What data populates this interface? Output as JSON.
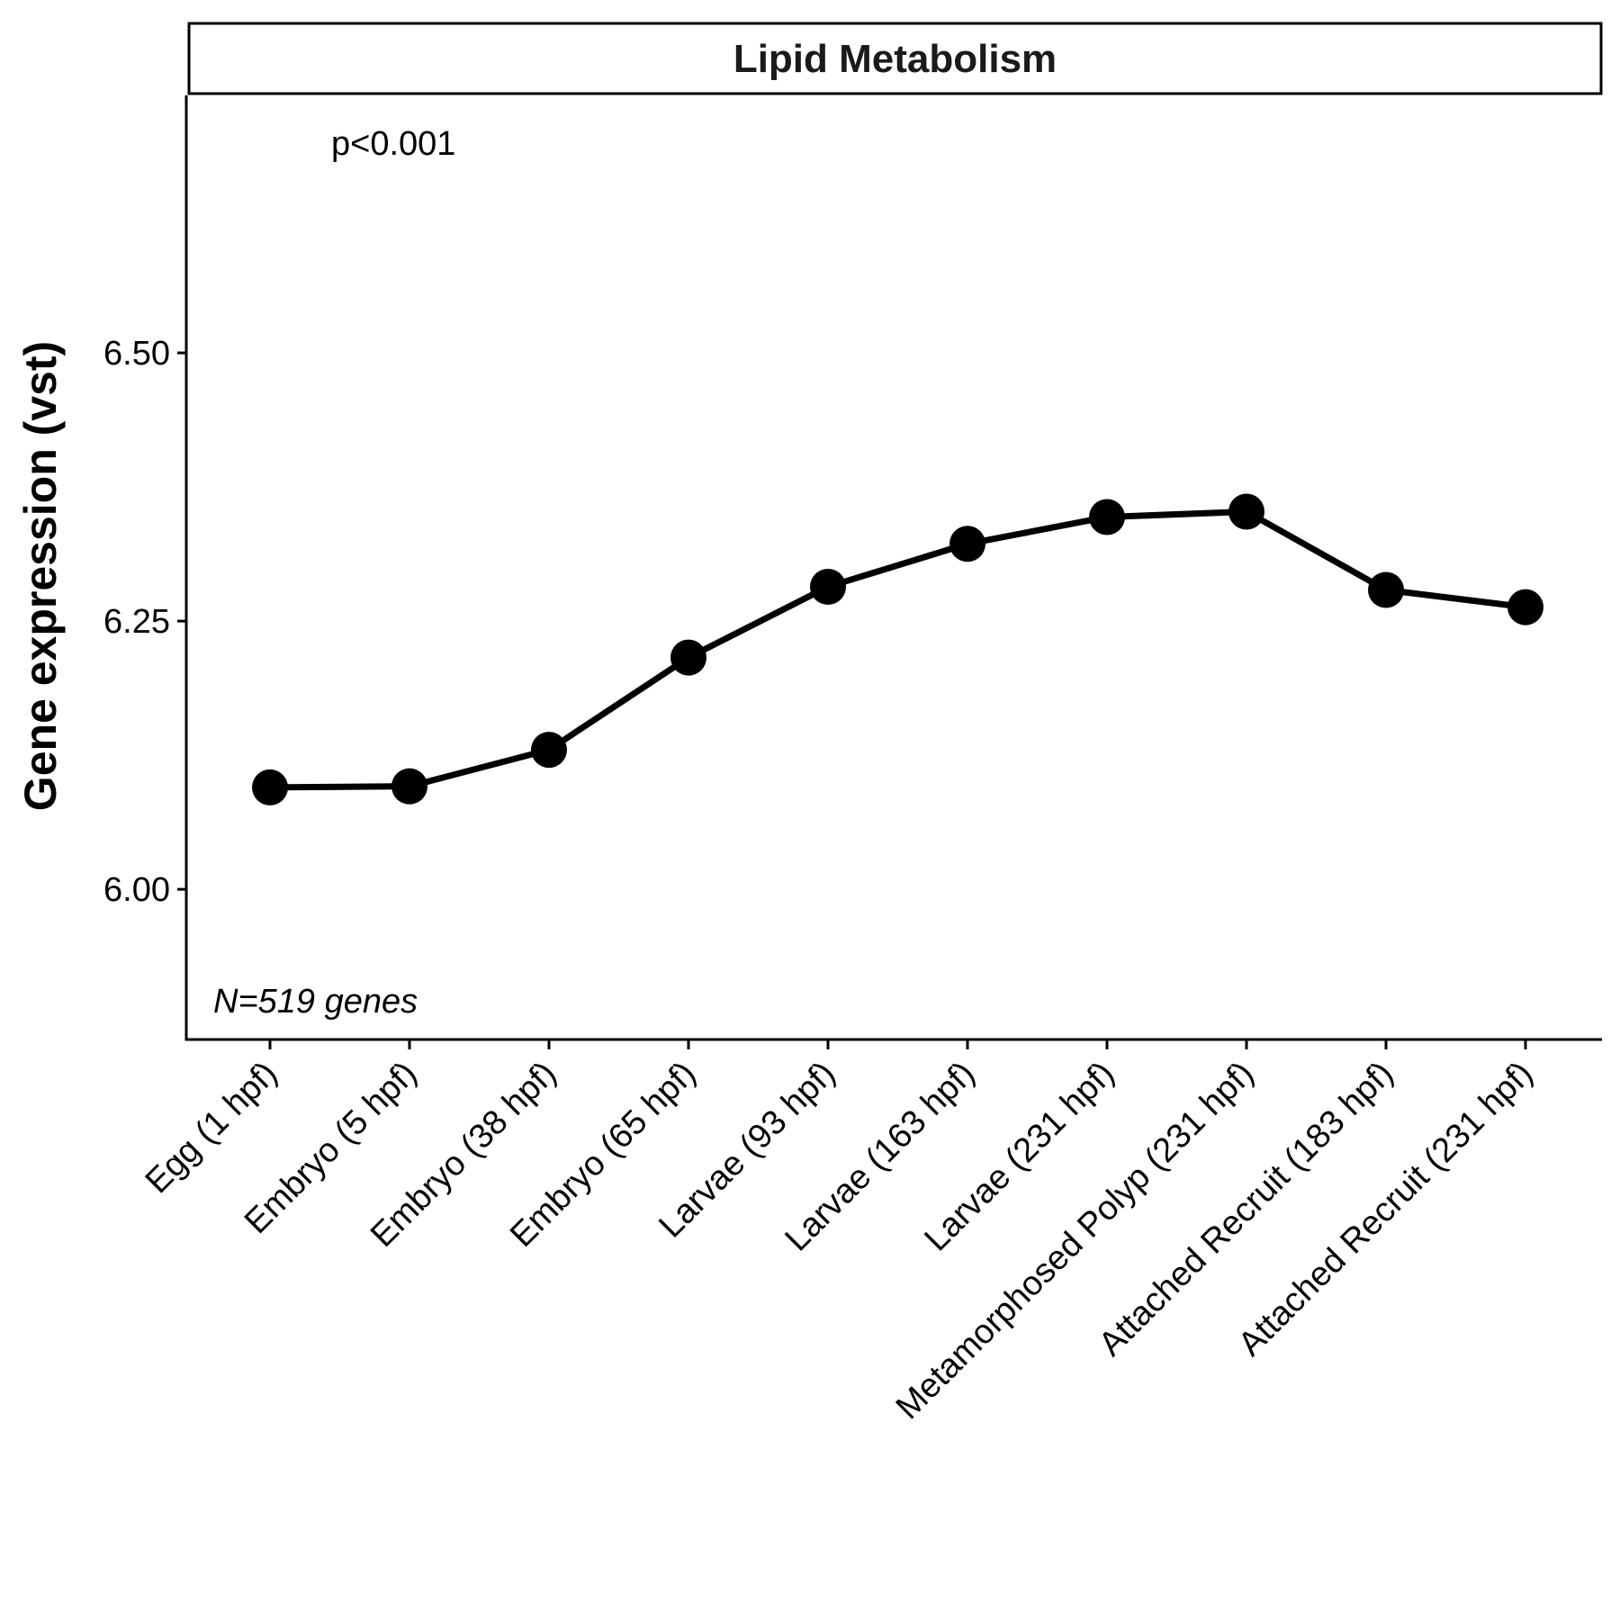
{
  "chart_data": {
    "type": "line",
    "title": "Lipid Metabolism",
    "xlabel": "",
    "ylabel": "Gene expression (vst)",
    "ylim": [
      5.86,
      6.74
    ],
    "yticks": [
      6.0,
      6.25,
      6.5
    ],
    "ytick_labels": [
      "6.00",
      "6.25",
      "6.50"
    ],
    "grid": false,
    "legend": "none",
    "categories": [
      "Egg (1 hpf)",
      "Embryo (5 hpf)",
      "Embryo (38 hpf)",
      "Embryo (65 hpf)",
      "Larvae (93 hpf)",
      "Larvae (163 hpf)",
      "Larvae (231 hpf)",
      "Metamorphosed Polyp (231 hpf)",
      "Attached Recruit (183 hpf)",
      "Attached Recruit (231 hpf)"
    ],
    "series": [
      {
        "values": [
          6.095,
          6.096,
          6.13,
          6.216,
          6.282,
          6.322,
          6.347,
          6.352,
          6.279,
          6.263
        ],
        "color": "#000000"
      }
    ],
    "annotations": {
      "p_value": "p<0.001",
      "n_genes": "N=519 genes"
    }
  }
}
